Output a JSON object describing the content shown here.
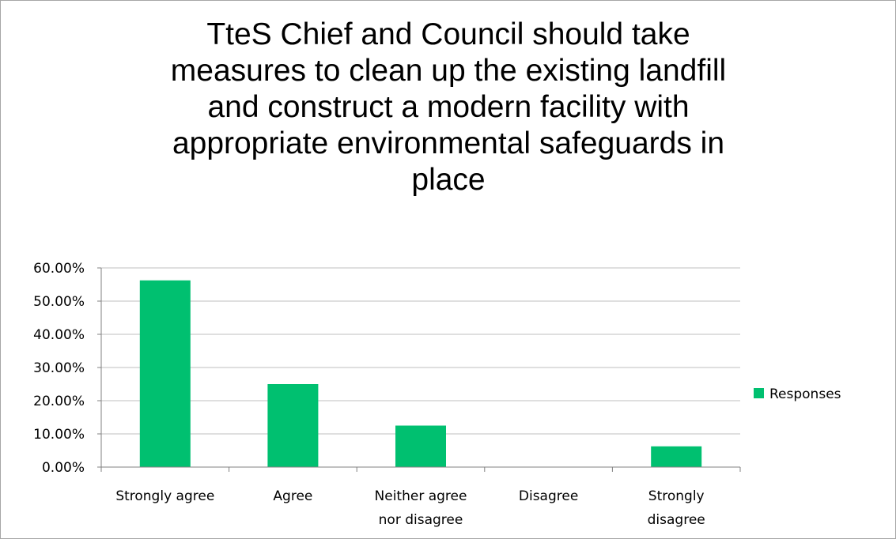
{
  "chart_data": {
    "type": "bar",
    "title_lines": [
      "TteS Chief and Council should take",
      "measures to clean up the existing landfill",
      "and construct a modern facility with",
      "appropriate environmental safeguards in",
      "place"
    ],
    "categories": [
      [
        "Strongly agree"
      ],
      [
        "Agree"
      ],
      [
        "Neither agree",
        "nor disagree"
      ],
      [
        "Disagree"
      ],
      [
        "Strongly",
        "disagree"
      ]
    ],
    "series": [
      {
        "name": "Responses",
        "color": "#00c070",
        "values": [
          0.5625,
          0.25,
          0.125,
          0.0,
          0.0625
        ]
      }
    ],
    "ylim": [
      0,
      0.6
    ],
    "y_ticks": [
      "0.00%",
      "10.00%",
      "20.00%",
      "30.00%",
      "40.00%",
      "50.00%",
      "60.00%"
    ],
    "grid": true,
    "legend_position": "right",
    "colors": {
      "bar": "#00c070",
      "gridline": "#bfbfbf",
      "axis": "#808080",
      "border": "#a6a6a6"
    }
  }
}
